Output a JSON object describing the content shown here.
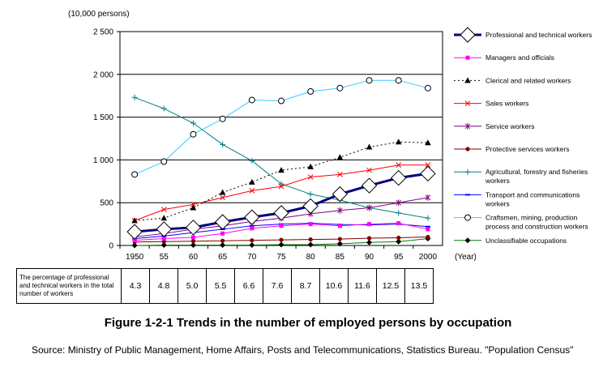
{
  "figure": {
    "title": "Figure 1-2-1  Trends in the number of employed persons by occupation",
    "source": "Source: Ministry of Public Management, Home Affairs, Posts and Telecommunications, Statistics Bureau. \"Population Census\""
  },
  "chart_data": {
    "type": "line",
    "y_unit_label": "(10,000 persons)",
    "x_unit_label": "(Year)",
    "x": [
      "1950",
      "55",
      "60",
      "65",
      "70",
      "75",
      "80",
      "85",
      "90",
      "95",
      "2000"
    ],
    "ylim": [
      0,
      2500
    ],
    "yticks": [
      0,
      500,
      1000,
      1500,
      2000,
      2500
    ],
    "ytick_labels": [
      "0",
      "500",
      "1 000",
      "1 500",
      "2 000",
      "2 500"
    ],
    "grid": "horizontal",
    "legend_position": "right",
    "series": [
      {
        "name": "Professional and technical workers",
        "color": "#000080",
        "marker": "diamond-large",
        "values": [
          160,
          190,
          210,
          275,
          330,
          380,
          460,
          600,
          700,
          790,
          840
        ]
      },
      {
        "name": "Managers and officials",
        "color": "#ff00ff",
        "marker": "square",
        "values": [
          60,
          80,
          95,
          140,
          200,
          230,
          250,
          230,
          250,
          260,
          190
        ]
      },
      {
        "name": "Clerical and related workers",
        "color": "#000000",
        "marker": "triangle",
        "dashed": true,
        "values": [
          290,
          320,
          440,
          620,
          740,
          880,
          920,
          1030,
          1150,
          1210,
          1200
        ]
      },
      {
        "name": "Sales workers",
        "color": "#ff0000",
        "marker": "x",
        "values": [
          290,
          420,
          480,
          560,
          640,
          690,
          800,
          830,
          880,
          940,
          940
        ]
      },
      {
        "name": "Service workers",
        "color": "#800080",
        "marker": "asterisk",
        "values": [
          100,
          140,
          190,
          230,
          280,
          320,
          370,
          410,
          440,
          500,
          560
        ]
      },
      {
        "name": "Protective services workers",
        "color": "#800000",
        "marker": "dot",
        "values": [
          40,
          45,
          50,
          55,
          60,
          65,
          70,
          75,
          85,
          90,
          100
        ]
      },
      {
        "name": "Agricultural, forestry and fisheries workers",
        "color": "#008080",
        "marker": "plus",
        "values": [
          1730,
          1600,
          1430,
          1180,
          990,
          720,
          600,
          530,
          440,
          380,
          320
        ]
      },
      {
        "name": "Transport and communications workers",
        "color": "#0000ff",
        "marker": "dash",
        "values": [
          80,
          110,
          150,
          190,
          230,
          250,
          260,
          245,
          240,
          250,
          220
        ]
      },
      {
        "name": "Craftsmen, mining, production process and construction workers",
        "color": "#33ccff",
        "marker": "circle-open",
        "values": [
          830,
          980,
          1300,
          1480,
          1700,
          1690,
          1800,
          1840,
          1930,
          1930,
          1840
        ]
      },
      {
        "name": "Unclassifiable occupations",
        "color": "#008000",
        "marker": "diamond-small",
        "values": [
          0,
          5,
          5,
          5,
          5,
          10,
          10,
          20,
          35,
          45,
          80
        ]
      }
    ],
    "legend_lines": [
      [
        "Professional and technical workers"
      ],
      [
        "Managers and officials"
      ],
      [
        "Clerical and related workers"
      ],
      [
        "Sales workers"
      ],
      [
        "Service workers"
      ],
      [
        "Protective services workers"
      ],
      [
        "Agricultural, forestry and fisheries",
        "workers"
      ],
      [
        "Transport and communications",
        "workers"
      ],
      [
        "Craftsmen, mining, production",
        "process and construction workers"
      ],
      [
        "Unclassifiable occupations"
      ]
    ]
  },
  "table": {
    "label": "The percentage of professional and technical workers in the total number of workers",
    "values": [
      "4.3",
      "4.8",
      "5.0",
      "5.5",
      "6.6",
      "7.6",
      "8.7",
      "10.6",
      "11.6",
      "12.5",
      "13.5"
    ]
  }
}
